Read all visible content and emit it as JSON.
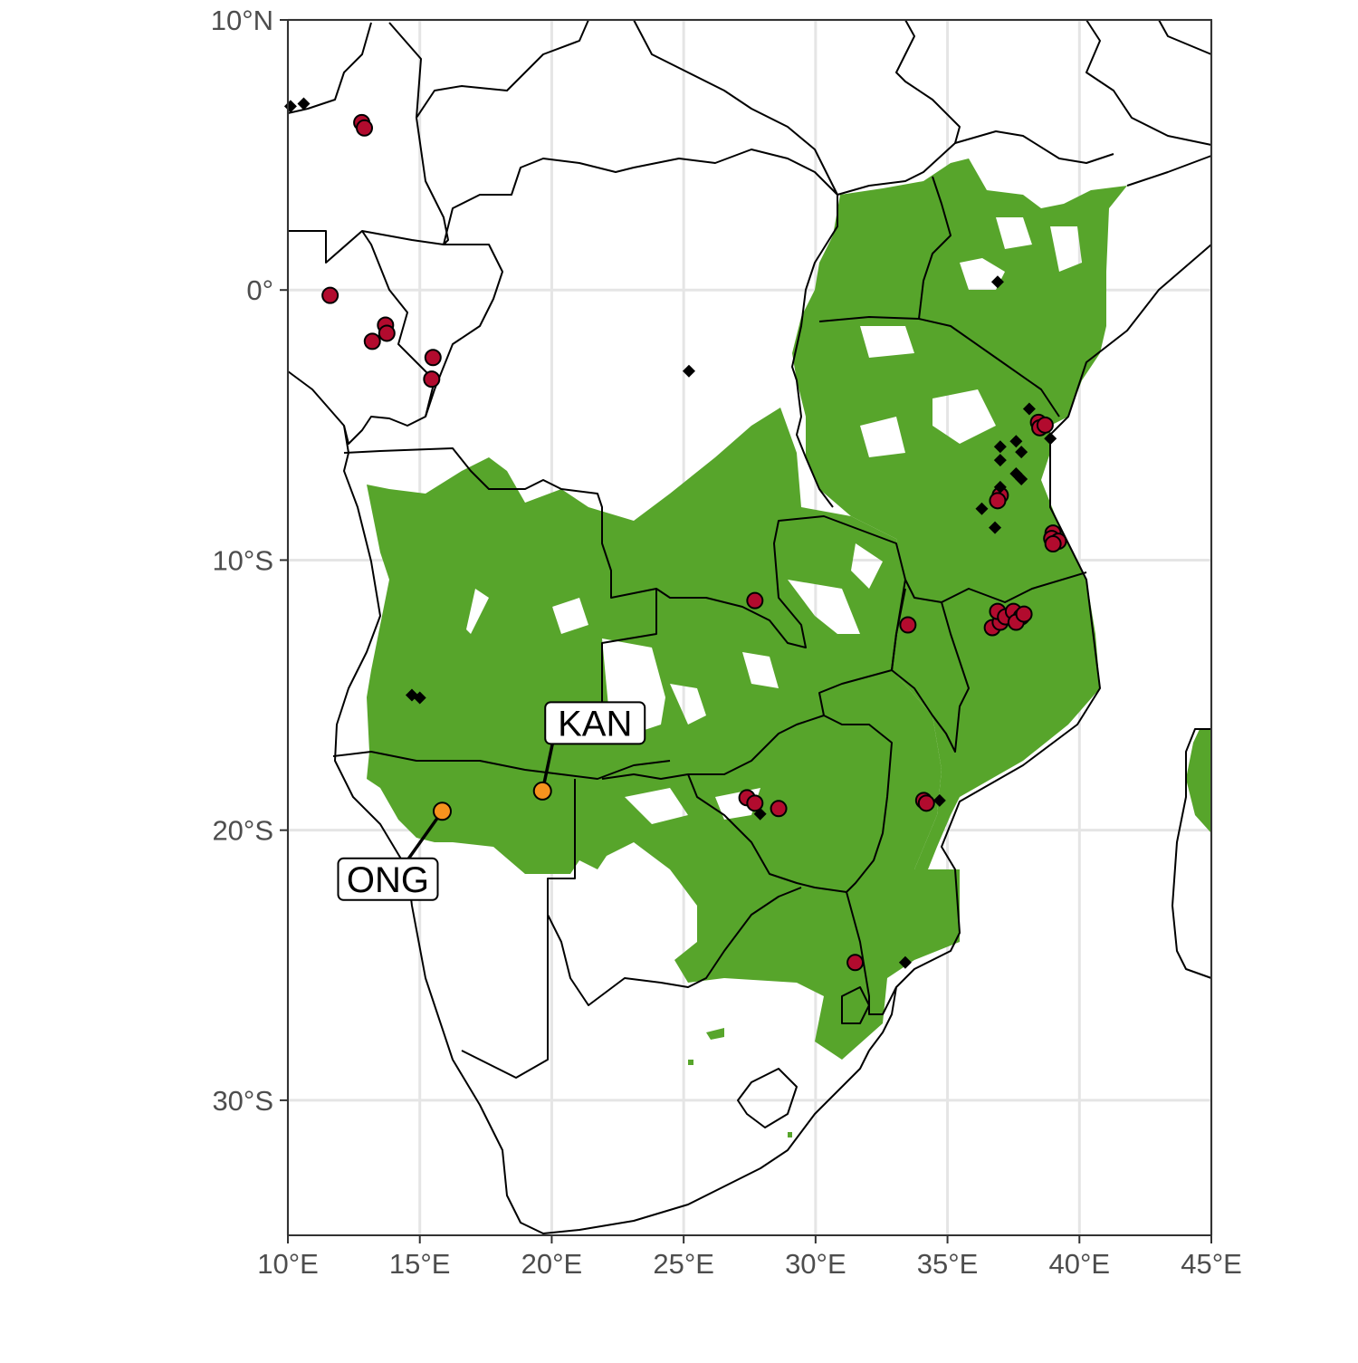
{
  "chart_data": {
    "type": "scatter",
    "title": "",
    "xlabel": "",
    "ylabel": "",
    "xlim": [
      10,
      45
    ],
    "ylim": [
      -35,
      10
    ],
    "grid": true,
    "x_ticks": [
      {
        "value": 10,
        "label": "10°E"
      },
      {
        "value": 15,
        "label": "15°E"
      },
      {
        "value": 20,
        "label": "20°E"
      },
      {
        "value": 25,
        "label": "25°E"
      },
      {
        "value": 30,
        "label": "30°E"
      },
      {
        "value": 35,
        "label": "35°E"
      },
      {
        "value": 40,
        "label": "40°E"
      },
      {
        "value": 45,
        "label": "45°E"
      }
    ],
    "y_ticks": [
      {
        "value": 10,
        "label": "10°N"
      },
      {
        "value": 0,
        "label": "0°"
      },
      {
        "value": -10,
        "label": "10°S"
      },
      {
        "value": -20,
        "label": "20°S"
      },
      {
        "value": -30,
        "label": "30°S"
      }
    ],
    "colors": {
      "habitat": "#57a52b",
      "red_points": "#b20b2e",
      "highlight_points": "#f7931e",
      "borders": "#000000",
      "grid": "#e5e5e5"
    },
    "red_points": [
      [
        12.8,
        6.2
      ],
      [
        12.9,
        6.0
      ],
      [
        11.6,
        -0.2
      ],
      [
        13.7,
        -1.3
      ],
      [
        13.75,
        -1.6
      ],
      [
        13.2,
        -1.9
      ],
      [
        15.5,
        -2.5
      ],
      [
        15.45,
        -3.3
      ],
      [
        38.45,
        -4.9
      ],
      [
        38.5,
        -5.1
      ],
      [
        38.7,
        -5.0
      ],
      [
        37.0,
        -7.6
      ],
      [
        36.9,
        -7.8
      ],
      [
        39.0,
        -9.0
      ],
      [
        38.95,
        -9.2
      ],
      [
        39.2,
        -9.3
      ],
      [
        39.0,
        -9.4
      ],
      [
        27.7,
        -11.5
      ],
      [
        33.5,
        -12.4
      ],
      [
        36.7,
        -12.5
      ],
      [
        37.0,
        -12.3
      ],
      [
        36.9,
        -11.9
      ],
      [
        37.2,
        -12.1
      ],
      [
        37.5,
        -11.9
      ],
      [
        37.8,
        -12.1
      ],
      [
        37.6,
        -12.3
      ],
      [
        37.9,
        -12.0
      ],
      [
        27.4,
        -18.8
      ],
      [
        27.7,
        -19.0
      ],
      [
        28.6,
        -19.2
      ],
      [
        34.1,
        -18.9
      ],
      [
        34.2,
        -19.0
      ],
      [
        31.5,
        -24.9
      ]
    ],
    "diamond_points": [
      [
        10.1,
        6.8
      ],
      [
        10.6,
        6.9
      ],
      [
        36.9,
        0.3
      ],
      [
        25.2,
        -3.0
      ],
      [
        38.1,
        -4.4
      ],
      [
        38.9,
        -5.5
      ],
      [
        37.0,
        -5.8
      ],
      [
        37.6,
        -5.6
      ],
      [
        37.0,
        -6.3
      ],
      [
        37.8,
        -6.0
      ],
      [
        37.6,
        -6.8
      ],
      [
        37.8,
        -7.0
      ],
      [
        37.0,
        -7.3
      ],
      [
        36.3,
        -8.1
      ],
      [
        36.8,
        -8.8
      ],
      [
        14.7,
        -15.0
      ],
      [
        15.0,
        -15.1
      ],
      [
        27.9,
        -19.4
      ],
      [
        34.7,
        -18.9
      ],
      [
        33.4,
        -24.9
      ]
    ],
    "highlight_points": [
      {
        "label": "KAN",
        "lon": 19.65,
        "lat": -18.55
      },
      {
        "label": "ONG",
        "lon": 15.85,
        "lat": -19.3
      }
    ]
  }
}
